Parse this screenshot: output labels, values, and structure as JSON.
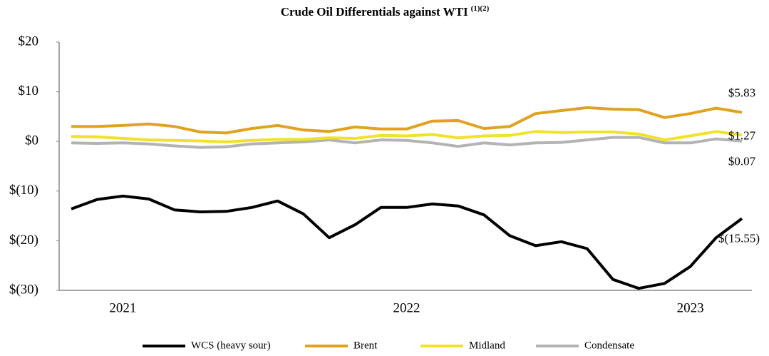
{
  "chart_data": {
    "type": "line",
    "title": "Crude Oil Differentials against WTI",
    "title_superscript": "(1)(2)",
    "categories": [
      null,
      null,
      "2021",
      null,
      null,
      null,
      null,
      null,
      null,
      null,
      null,
      null,
      null,
      "2022",
      null,
      null,
      null,
      null,
      null,
      null,
      null,
      null,
      null,
      null,
      "2023",
      null,
      null
    ],
    "ylim": [
      -30,
      20
    ],
    "yticks": [
      {
        "value": 20,
        "label": "$20"
      },
      {
        "value": 10,
        "label": "$10"
      },
      {
        "value": 0,
        "label": "$0"
      },
      {
        "value": -10,
        "label": "$(10)"
      },
      {
        "value": -20,
        "label": "$(20)"
      },
      {
        "value": -30,
        "label": "$(30)"
      }
    ],
    "series": [
      {
        "name": "WCS (heavy sour)",
        "color": "#000000",
        "values": [
          -13.6,
          -11.7,
          -11,
          -11.6,
          -13.8,
          -14.2,
          -14.1,
          -13.3,
          -12,
          -14.6,
          -19.4,
          -16.8,
          -13.3,
          -13.3,
          -12.6,
          -13,
          -14.8,
          -19,
          -21,
          -20.2,
          -21.6,
          -27.8,
          -29.6,
          -28.6,
          -25.2,
          -19.4,
          -15.55
        ],
        "value_labels": [
          null,
          null,
          null,
          null,
          null,
          null,
          null,
          null,
          null,
          null,
          null,
          null,
          null,
          null,
          null,
          null,
          null,
          null,
          null,
          null,
          null,
          null,
          null,
          null,
          null,
          null,
          "$(15.55)"
        ]
      },
      {
        "name": "Brent",
        "color": "#e0a321",
        "values": [
          3,
          3,
          3.2,
          3.5,
          3,
          1.9,
          1.7,
          2.6,
          3.2,
          2.3,
          2,
          2.9,
          2.5,
          2.5,
          4.1,
          4.2,
          2.6,
          3,
          5.6,
          6.2,
          6.8,
          6.5,
          6.4,
          4.8,
          5.6,
          6.7,
          5.83
        ],
        "value_labels": [
          null,
          null,
          null,
          null,
          null,
          null,
          null,
          null,
          null,
          null,
          null,
          null,
          null,
          null,
          null,
          null,
          null,
          null,
          null,
          null,
          null,
          null,
          null,
          null,
          null,
          null,
          "$5.83"
        ]
      },
      {
        "name": "Midland",
        "color": "#f0e12a",
        "values": [
          1,
          0.9,
          0.6,
          0.3,
          0.2,
          0.1,
          -0.1,
          0.2,
          0.4,
          0.4,
          0.7,
          0.6,
          1.2,
          1.1,
          1.4,
          0.7,
          1.1,
          1.2,
          2,
          1.8,
          1.9,
          1.9,
          1.5,
          0.3,
          1.1,
          2,
          1.27
        ],
        "value_labels": [
          null,
          null,
          null,
          null,
          null,
          null,
          null,
          null,
          null,
          null,
          null,
          null,
          null,
          null,
          null,
          null,
          null,
          null,
          null,
          null,
          null,
          null,
          null,
          null,
          null,
          null,
          "$1.27"
        ]
      },
      {
        "name": "Condensate",
        "color": "#b3b3b3",
        "values": [
          -0.3,
          -0.4,
          -0.3,
          -0.5,
          -0.9,
          -1.2,
          -1.1,
          -0.5,
          -0.3,
          -0.1,
          0.3,
          -0.3,
          0.3,
          0.2,
          -0.3,
          -1,
          -0.3,
          -0.7,
          -0.3,
          -0.2,
          0.3,
          0.8,
          0.8,
          -0.3,
          -0.3,
          0.5,
          0.07
        ],
        "value_labels": [
          null,
          null,
          null,
          null,
          null,
          null,
          null,
          null,
          null,
          null,
          null,
          null,
          null,
          null,
          null,
          null,
          null,
          null,
          null,
          null,
          null,
          null,
          null,
          null,
          null,
          null,
          "$0.07"
        ]
      }
    ],
    "legend": "bottom"
  }
}
